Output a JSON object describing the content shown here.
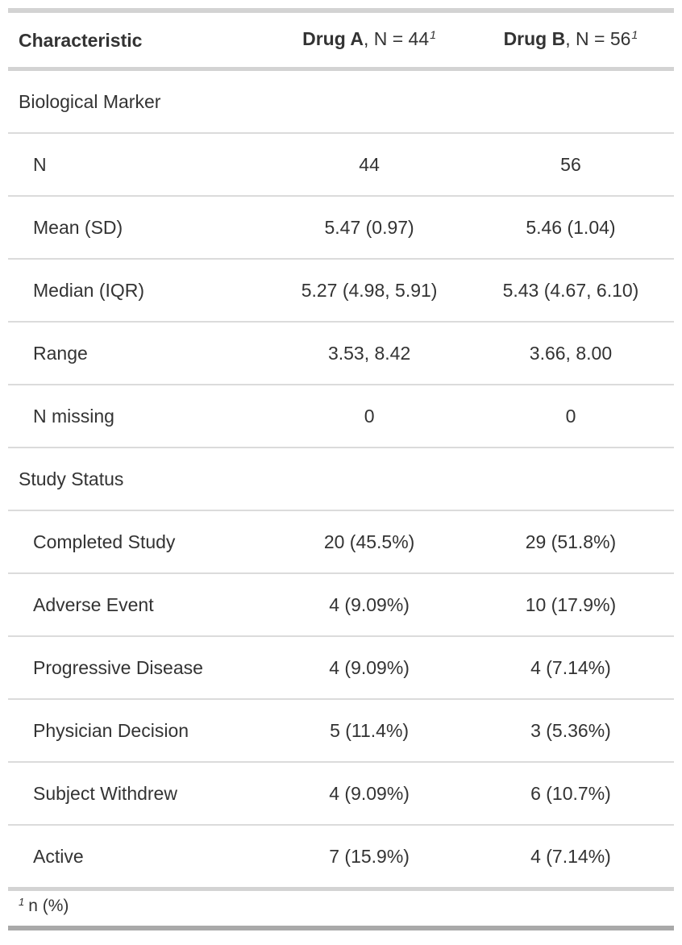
{
  "chart_data": {
    "type": "table",
    "columns": [
      "Characteristic",
      "Drug A, N = 44¹",
      "Drug B, N = 56¹"
    ],
    "rows": [
      {
        "label": "Biological Marker",
        "group": true,
        "drug_a": "",
        "drug_b": ""
      },
      {
        "label": "N",
        "group": false,
        "drug_a": "44",
        "drug_b": "56"
      },
      {
        "label": "Mean (SD)",
        "group": false,
        "drug_a": "5.47 (0.97)",
        "drug_b": "5.46 (1.04)"
      },
      {
        "label": "Median (IQR)",
        "group": false,
        "drug_a": "5.27 (4.98, 5.91)",
        "drug_b": "5.43 (4.67, 6.10)"
      },
      {
        "label": "Range",
        "group": false,
        "drug_a": "3.53, 8.42",
        "drug_b": "3.66, 8.00"
      },
      {
        "label": "N missing",
        "group": false,
        "drug_a": "0",
        "drug_b": "0"
      },
      {
        "label": "Study Status",
        "group": true,
        "drug_a": "",
        "drug_b": ""
      },
      {
        "label": "Completed Study",
        "group": false,
        "drug_a": "20 (45.5%)",
        "drug_b": "29 (51.8%)"
      },
      {
        "label": "Adverse Event",
        "group": false,
        "drug_a": "4 (9.09%)",
        "drug_b": "10 (17.9%)"
      },
      {
        "label": "Progressive Disease",
        "group": false,
        "drug_a": "4 (9.09%)",
        "drug_b": "4 (7.14%)"
      },
      {
        "label": "Physician Decision",
        "group": false,
        "drug_a": "5 (11.4%)",
        "drug_b": "3 (5.36%)"
      },
      {
        "label": "Subject Withdrew",
        "group": false,
        "drug_a": "4 (9.09%)",
        "drug_b": "6 (10.7%)"
      },
      {
        "label": "Active",
        "group": false,
        "drug_a": "7 (15.9%)",
        "drug_b": "4 (7.14%)"
      }
    ],
    "footnote": "1 n (%)"
  },
  "table": {
    "header": {
      "characteristic": "Characteristic",
      "groups": [
        {
          "name": "Drug A",
          "rest": ", N = 44",
          "mark": "1"
        },
        {
          "name": "Drug B",
          "rest": ", N = 56",
          "mark": "1"
        }
      ]
    },
    "rows": [
      {
        "label": "Biological Marker",
        "indent": false,
        "values": [
          "",
          ""
        ]
      },
      {
        "label": "N",
        "indent": true,
        "values": [
          "44",
          "56"
        ]
      },
      {
        "label": "Mean (SD)",
        "indent": true,
        "values": [
          "5.47 (0.97)",
          "5.46 (1.04)"
        ]
      },
      {
        "label": "Median (IQR)",
        "indent": true,
        "values": [
          "5.27 (4.98, 5.91)",
          "5.43 (4.67, 6.10)"
        ]
      },
      {
        "label": "Range",
        "indent": true,
        "values": [
          "3.53, 8.42",
          "3.66, 8.00"
        ]
      },
      {
        "label": "N missing",
        "indent": true,
        "values": [
          "0",
          "0"
        ]
      },
      {
        "label": "Study Status",
        "indent": false,
        "values": [
          "",
          ""
        ]
      },
      {
        "label": "Completed Study",
        "indent": true,
        "values": [
          "20 (45.5%)",
          "29 (51.8%)"
        ]
      },
      {
        "label": "Adverse Event",
        "indent": true,
        "values": [
          "4 (9.09%)",
          "10 (17.9%)"
        ]
      },
      {
        "label": "Progressive Disease",
        "indent": true,
        "values": [
          "4 (9.09%)",
          "4 (7.14%)"
        ]
      },
      {
        "label": "Physician Decision",
        "indent": true,
        "values": [
          "5 (11.4%)",
          "3 (5.36%)"
        ]
      },
      {
        "label": "Subject Withdrew",
        "indent": true,
        "values": [
          "4 (9.09%)",
          "6 (10.7%)"
        ]
      },
      {
        "label": "Active",
        "indent": true,
        "values": [
          "7 (15.9%)",
          "4 (7.14%)"
        ]
      }
    ],
    "footnotes": [
      {
        "mark": "1",
        "text": "n (%)"
      }
    ]
  },
  "colors": {
    "border_light": "#d3d3d3",
    "border_dark": "#a9a9a9",
    "row_divider": "#dbdbdb",
    "text": "#333333"
  }
}
